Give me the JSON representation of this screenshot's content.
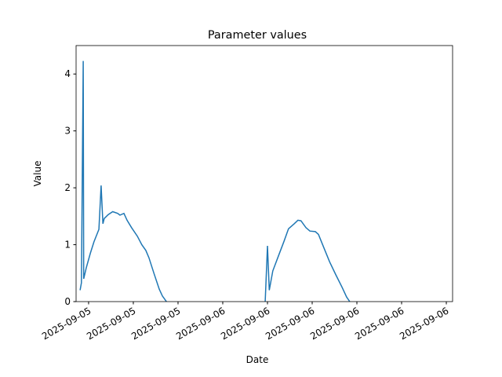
{
  "chart_data": {
    "type": "line",
    "title": "Parameter values",
    "x_label": "Date",
    "y_label": "Value",
    "x": [
      -0.19,
      -0.16,
      -0.12,
      -0.11,
      -0.05,
      0.04,
      0.12,
      0.23,
      0.28,
      0.32,
      0.35,
      0.44,
      0.54,
      0.65,
      0.7,
      0.79,
      0.86,
      0.96,
      1.09,
      1.19,
      1.28,
      1.35,
      1.46,
      1.58,
      1.65,
      1.74,
      2.5,
      3.95,
      4.0,
      4.04,
      4.12,
      4.25,
      4.37,
      4.47,
      4.6,
      4.68,
      4.75,
      4.86,
      4.95,
      5.07,
      5.14,
      5.26,
      5.39,
      5.53,
      5.67,
      5.77,
      5.84
    ],
    "series": [
      {
        "name": "Value",
        "color": "#1f77b4",
        "values": [
          0.2,
          0.33,
          4.23,
          0.4,
          0.6,
          0.85,
          1.05,
          1.27,
          2.04,
          1.37,
          1.46,
          1.53,
          1.58,
          1.55,
          1.52,
          1.55,
          1.43,
          1.3,
          1.15,
          1.0,
          0.9,
          0.77,
          0.5,
          0.22,
          0.1,
          0,
          null,
          0,
          0.98,
          0.2,
          0.54,
          0.81,
          1.06,
          1.28,
          1.37,
          1.43,
          1.42,
          1.3,
          1.24,
          1.23,
          1.18,
          0.95,
          0.7,
          0.47,
          0.25,
          0.08,
          0
        ]
      }
    ],
    "xlim": [
      -0.28,
      8.14
    ],
    "ylim": [
      0,
      4.5
    ],
    "xticks": [
      {
        "value": 0,
        "label": "2025-09-05"
      },
      {
        "value": 1,
        "label": "2025-09-05"
      },
      {
        "value": 2,
        "label": "2025-09-05"
      },
      {
        "value": 3,
        "label": "2025-09-06"
      },
      {
        "value": 4,
        "label": "2025-09-06"
      },
      {
        "value": 5,
        "label": "2025-09-06"
      },
      {
        "value": 6,
        "label": "2025-09-06"
      },
      {
        "value": 7,
        "label": "2025-09-06"
      },
      {
        "value": 8,
        "label": "2025-09-06"
      }
    ],
    "yticks": [
      0,
      1,
      2,
      3,
      4
    ]
  }
}
